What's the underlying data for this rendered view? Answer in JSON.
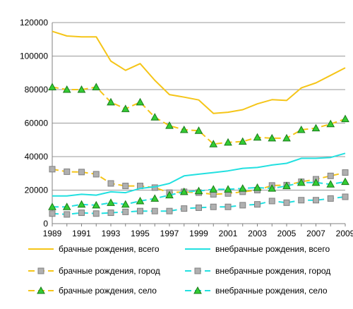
{
  "chart_data": {
    "type": "line",
    "title": "",
    "xlabel": "",
    "ylabel": "",
    "ylim": [
      0,
      120000
    ],
    "yticks": [
      0,
      20000,
      40000,
      60000,
      80000,
      100000,
      120000
    ],
    "ytick_labels": [
      "0",
      "20000",
      "40000",
      "60000",
      "80000",
      "100000",
      "120000"
    ],
    "x": [
      1989,
      1990,
      1991,
      1992,
      1993,
      1994,
      1995,
      1996,
      1997,
      1998,
      1999,
      2000,
      2001,
      2002,
      2003,
      2004,
      2005,
      2006,
      2007,
      2008,
      2009
    ],
    "xtick_labels": [
      "1989",
      "1991",
      "1993",
      "1995",
      "1997",
      "1999",
      "2001",
      "2003",
      "2005",
      "2007",
      "2009"
    ],
    "grid": "horizontal",
    "legend_position": "bottom",
    "series": [
      {
        "name": "брачные рождения, всего",
        "color": "#f5c518",
        "style": "solid",
        "marker": "none",
        "values": [
          114800,
          112000,
          111500,
          111500,
          97000,
          91500,
          95500,
          85500,
          77000,
          75500,
          73800,
          65800,
          66500,
          68000,
          71500,
          74000,
          73500,
          81000,
          84000,
          88500,
          93000
        ]
      },
      {
        "name": "брачные рождения, город",
        "color": "#f5c518",
        "style": "dashed",
        "marker": "square",
        "values": [
          32500,
          31000,
          30800,
          29500,
          24000,
          22500,
          22500,
          21500,
          18500,
          19000,
          18500,
          17500,
          18000,
          19000,
          20000,
          22800,
          23000,
          25000,
          26500,
          28500,
          30500
        ]
      },
      {
        "name": "брачные рождения, село",
        "color": "#f5c518",
        "style": "dashed",
        "marker": "triangle",
        "values": [
          81500,
          80000,
          80000,
          81500,
          72500,
          68500,
          72500,
          63500,
          58500,
          56000,
          55500,
          47500,
          48500,
          49000,
          51500,
          51000,
          51000,
          56000,
          57000,
          59500,
          62500
        ]
      },
      {
        "name": "внебрачные рождения, всего",
        "color": "#22e0e0",
        "style": "solid",
        "marker": "none",
        "values": [
          16500,
          16500,
          17500,
          17000,
          19000,
          18500,
          21000,
          22000,
          24000,
          28500,
          29500,
          30500,
          31500,
          33000,
          33500,
          35000,
          36000,
          39000,
          39000,
          39500,
          42000
        ]
      },
      {
        "name": "внебрачные рождения, город",
        "color": "#22e0e0",
        "style": "dashed",
        "marker": "square",
        "values": [
          6000,
          5500,
          6500,
          6000,
          6500,
          7000,
          7500,
          7500,
          7500,
          9000,
          9500,
          10000,
          10000,
          11000,
          11500,
          13500,
          12500,
          14000,
          14000,
          15000,
          16000
        ]
      },
      {
        "name": "внебрачные рождения, село",
        "color": "#22e0e0",
        "style": "dashed",
        "marker": "triangle",
        "values": [
          10000,
          10000,
          11500,
          11000,
          12500,
          11500,
          13500,
          15000,
          17000,
          19000,
          19500,
          20500,
          20500,
          21000,
          21500,
          21000,
          22500,
          24500,
          24500,
          23500,
          25000
        ]
      }
    ]
  }
}
